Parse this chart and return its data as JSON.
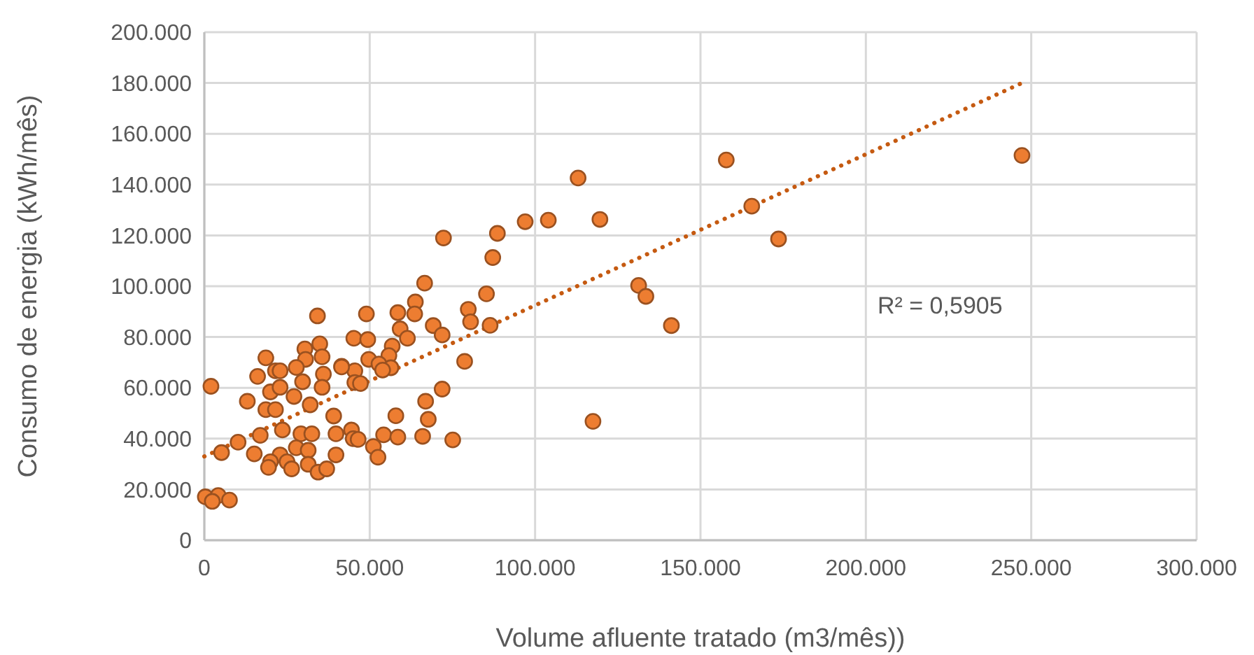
{
  "chart_data": {
    "type": "scatter",
    "xlabel": "Volume afluente tratado (m3/mês))",
    "ylabel": "Consumo de energia (kWh/mês)",
    "xlim": [
      0,
      300000
    ],
    "ylim": [
      0,
      200000
    ],
    "xticks": [
      0,
      {
        "value": 50000,
        "label": "50.000"
      },
      {
        "value": 100000,
        "label": "100.000"
      },
      {
        "value": 150000,
        "label": "150.000"
      },
      {
        "value": 200000,
        "label": "200.000"
      },
      {
        "value": 250000,
        "label": "250.000"
      },
      {
        "value": 300000,
        "label": "300.000"
      }
    ],
    "yticks": [
      0,
      {
        "value": 20000,
        "label": "20.000"
      },
      {
        "value": 40000,
        "label": "40.000"
      },
      {
        "value": 60000,
        "label": "60.000"
      },
      {
        "value": 80000,
        "label": "80.000"
      },
      {
        "value": 100000,
        "label": "100.000"
      },
      {
        "value": 120000,
        "label": "120.000"
      },
      {
        "value": 140000,
        "label": "140.000"
      },
      {
        "value": 160000,
        "label": "160.000"
      },
      {
        "value": 180000,
        "label": "180.000"
      },
      {
        "value": 200000,
        "label": "200.000"
      }
    ],
    "grid": true,
    "annotations": [
      "R² = 0,5905"
    ],
    "series": [
      {
        "marker": "circle",
        "color": "#ed7d31",
        "x": [
          34200,
          2000,
          18600,
          16100,
          13000,
          30400,
          34900,
          30600,
          35600,
          27800,
          21500,
          22900,
          29700,
          36000,
          35600,
          20000,
          22900,
          27100,
          32000,
          18600,
          21500,
          41500,
          45500,
          39100,
          23600,
          16900,
          10200,
          5200,
          15100,
          29200,
          32500,
          39800,
          22900,
          20000,
          19400,
          25000,
          26400,
          27800,
          31400,
          31400,
          34400,
          37000,
          39800,
          300,
          4200,
          7600,
          2400,
          72300,
          88600,
          97000,
          104000,
          119600,
          87200,
          66600,
          63800,
          63600,
          49000,
          58500,
          59200,
          61400,
          69200,
          71900,
          79800,
          80500,
          85300,
          86400,
          45200,
          49400,
          56800,
          55800,
          49700,
          52800,
          56400,
          53900,
          41500,
          45500,
          47200,
          78700,
          71900,
          66900,
          67700,
          57900,
          44500,
          45000,
          46500,
          54200,
          58500,
          66000,
          75100,
          51100,
          52500,
          117500,
          157800,
          247200,
          165500,
          173600,
          131300,
          133500,
          141200,
          113000
        ],
        "values": [
          88300,
          60600,
          71800,
          64500,
          54700,
          75300,
          77300,
          71200,
          72200,
          68000,
          66700,
          66700,
          62400,
          65400,
          60200,
          58400,
          60200,
          56600,
          53300,
          51400,
          51400,
          68500,
          66700,
          48900,
          43400,
          41300,
          38600,
          34500,
          34000,
          41900,
          41900,
          41900,
          33600,
          30900,
          28700,
          30900,
          28100,
          36400,
          35400,
          29900,
          26800,
          28100,
          33600,
          17100,
          17600,
          15800,
          15300,
          119000,
          120800,
          125400,
          126000,
          126300,
          111300,
          101200,
          93800,
          89100,
          89100,
          89600,
          83200,
          79500,
          84500,
          80800,
          90900,
          86000,
          97000,
          84600,
          79500,
          79000,
          76400,
          72700,
          71200,
          69400,
          67900,
          67000,
          68200,
          62100,
          61700,
          70400,
          59500,
          54700,
          47600,
          49000,
          43400,
          40000,
          39700,
          41500,
          40600,
          40900,
          39500,
          36900,
          32700,
          46800,
          149700,
          151500,
          131500,
          118600,
          100300,
          96000,
          84500,
          142600
        ]
      },
      {
        "type": "line",
        "line_style": "dotted",
        "color": "#c55a11",
        "x": [
          0,
          247200
        ],
        "values": [
          33000,
          180000
        ]
      }
    ]
  }
}
